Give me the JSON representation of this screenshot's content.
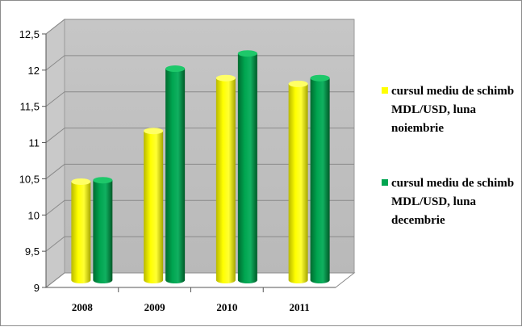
{
  "chart_data": {
    "type": "bar",
    "categories": [
      "2008",
      "2009",
      "2010",
      "2011"
    ],
    "series": [
      {
        "name": "cursul mediu de schimb MDL/USD, luna noiembrie",
        "color": "#ffff00",
        "values": [
          10.36,
          11.06,
          11.79,
          11.71
        ]
      },
      {
        "name": "cursul mediu de schimb MDL/USD, luna decembrie",
        "color": "#00a550",
        "values": [
          10.38,
          11.92,
          12.13,
          11.79
        ]
      }
    ],
    "yticks": [
      "9",
      "9,5",
      "10",
      "10,5",
      "11",
      "11,5",
      "12",
      "12,5"
    ],
    "ylim": [
      9,
      12.5
    ],
    "grid": true,
    "legend_position": "right",
    "style": "3d-cylinder"
  }
}
